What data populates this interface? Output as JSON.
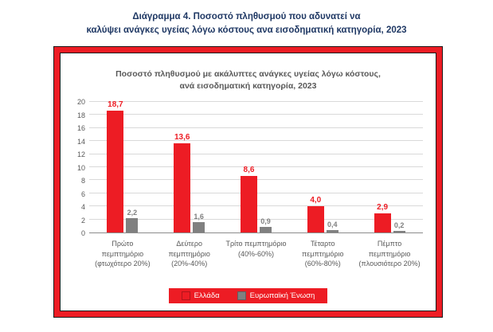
{
  "page": {
    "heading_line1": "Διάγραμμα 4. Ποσοστό πληθυσμού που αδυνατεί να",
    "heading_line2": "καλύψει ανάγκες υγείας λόγω κόστους ανα εισοδηματική κατηγορία, 2023"
  },
  "colors": {
    "greece_red": "#ED1C24",
    "eu_gray": "#808080",
    "heading_navy": "#1F3864",
    "axis_gray": "#595959",
    "gridline_gray": "#D9D9D9",
    "frame_red": "#ED1C24"
  },
  "chart_data": {
    "type": "bar",
    "title": "Ποσοστό πληθυσμού με ακάλυπτες ανάγκες υγείας λόγω κόστους, ανά εισοδηματική κατηγορία, 2023",
    "title_line1": "Ποσοστό πληθυσμού με ακάλυπτες ανάγκες υγείας λόγω κόστους,",
    "title_line2": "ανά εισοδηματική κατηγορία, 2023",
    "categories": [
      "Πρώτο πεμπτημόριο (φτωχότερο 20%)",
      "Δεύτερο πεμπτημόριο (20%-40%)",
      "Τρίτο πεμπτημόριο (40%-60%)",
      "Τέταρτο πεμπτημόριο (60%-80%)",
      "Πέμπτο πεμπτημόριο (πλουσιότερο 20%)"
    ],
    "series": [
      {
        "name": "Ελλάδα",
        "color": "#ED1C24",
        "values": [
          18.7,
          13.6,
          8.6,
          4.0,
          2.9
        ],
        "labels": [
          "18,7",
          "13,6",
          "8,6",
          "4,0",
          "2,9"
        ]
      },
      {
        "name": "Ευρωπαϊκή Ένωση",
        "color": "#808080",
        "values": [
          2.2,
          1.6,
          0.9,
          0.4,
          0.2
        ],
        "labels": [
          "2,2",
          "1,6",
          "0,9",
          "0,4",
          "0,2"
        ]
      }
    ],
    "xlabel": "",
    "ylabel": "",
    "ylim": [
      0,
      20
    ],
    "yticks": [
      0,
      2,
      4,
      6,
      8,
      10,
      12,
      14,
      16,
      18,
      20
    ],
    "grid": true,
    "legend_position": "bottom"
  }
}
